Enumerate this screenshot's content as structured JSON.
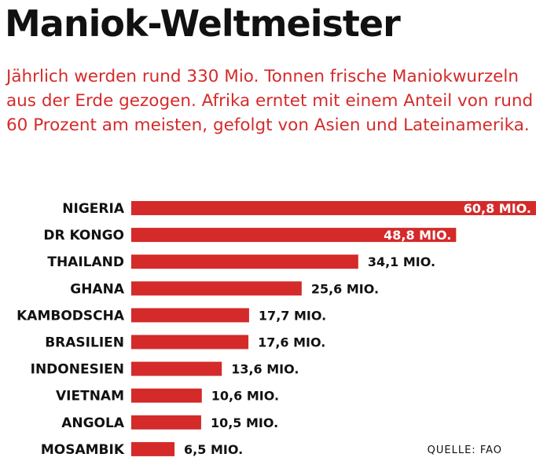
{
  "title": "Maniok-Weltmeister",
  "subtitle": "Jährlich werden rund 330 Mio. Tonnen frische Maniokwurzeln aus der Erde gezogen. Afrika erntet mit einem Anteil von rund 60 Prozent am meisten, gefolgt von Asien und Lateinamerika.",
  "source": "QUELLE: FAO",
  "colors": {
    "bar": "#d42a2a",
    "text": "#111111",
    "subtitle": "#d42a2a"
  },
  "chart_data": {
    "type": "bar",
    "orientation": "horizontal",
    "categories": [
      "NIGERIA",
      "DR KONGO",
      "THAILAND",
      "GHANA",
      "KAMBODSCHA",
      "BRASILIEN",
      "INDONESIEN",
      "VIETNAM",
      "ANGOLA",
      "MOSAMBIK"
    ],
    "values": [
      60.8,
      48.8,
      34.1,
      25.6,
      17.7,
      17.6,
      13.6,
      10.6,
      10.5,
      6.5
    ],
    "value_labels": [
      "60,8 MIO.",
      "48,8 MIO.",
      "34,1 MIO.",
      "25,6 MIO.",
      "17,7 MIO.",
      "17,6 MIO.",
      "13,6 MIO.",
      "10,6 MIO.",
      "10,5 MIO.",
      "6,5 MIO."
    ],
    "title": "Maniok-Weltmeister",
    "xlabel": "",
    "ylabel": "",
    "xlim": [
      0,
      60.8
    ],
    "grid": false
  }
}
